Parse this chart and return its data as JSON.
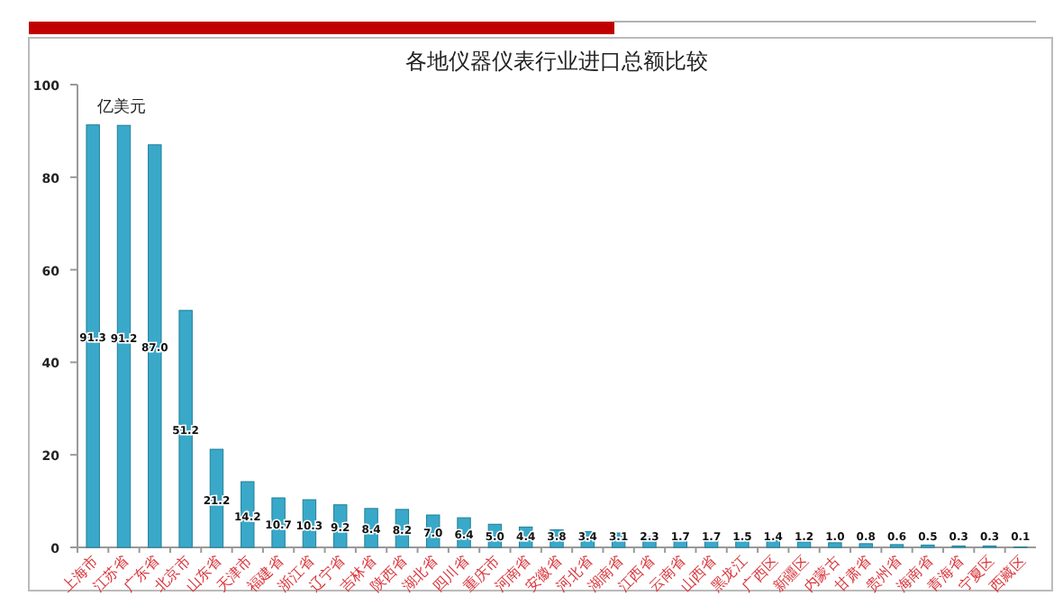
{
  "chart_data": {
    "type": "bar",
    "title": "各地仪器仪表行业进口总额比较",
    "annotations": [
      "亿美元"
    ],
    "categories": [
      "上海市",
      "江苏省",
      "广东省",
      "北京市",
      "山东省",
      "天津市",
      "福建省",
      "浙江省",
      "辽宁省",
      "吉林省",
      "陕西省",
      "湖北省",
      "四川省",
      "重庆市",
      "河南省",
      "安徽省",
      "河北省",
      "湖南省",
      "江西省",
      "云南省",
      "山西省",
      "黑龙江",
      "广西区",
      "新疆区",
      "内蒙古",
      "甘肃省",
      "贵州省",
      "海南省",
      "青海省",
      "宁夏区",
      "西藏区"
    ],
    "values": [
      91.3,
      91.2,
      87.0,
      51.2,
      21.2,
      14.2,
      10.7,
      10.3,
      9.2,
      8.4,
      8.2,
      7.0,
      6.4,
      5.0,
      4.4,
      3.8,
      3.4,
      3.1,
      2.3,
      1.7,
      1.7,
      1.5,
      1.4,
      1.2,
      1.0,
      0.8,
      0.6,
      0.5,
      0.3,
      0.3,
      0.1
    ],
    "color": "#3aa9c9",
    "ylim": [
      0,
      100
    ],
    "yticks": [
      0,
      20,
      40,
      60,
      80,
      100
    ],
    "value_labels": [
      "91.3",
      "91.2",
      "87.0",
      "51.2",
      "21.2",
      "14.2",
      "10.7",
      "10.3",
      "9.2",
      "8.4",
      "8.2",
      "7.0",
      "6.4",
      "5.0",
      "4.4",
      "3.8",
      "3.4",
      "3.1",
      "2.3",
      "1.7",
      "1.7",
      "1.5",
      "1.4",
      "1.2",
      "1.0",
      "0.8",
      "0.6",
      "0.5",
      "0.3",
      "0.3",
      "0.1"
    ],
    "grid": false
  }
}
